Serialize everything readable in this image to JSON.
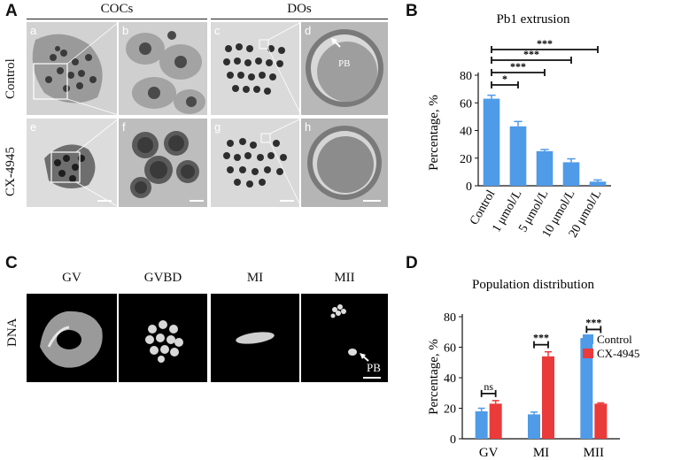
{
  "panel_a": {
    "letter": "A",
    "headers": [
      "COCs",
      "DOs"
    ],
    "row_labels": [
      "Control",
      "CX-4945"
    ],
    "sub_letters": [
      "a",
      "b",
      "c",
      "d",
      "e",
      "f",
      "g",
      "h"
    ],
    "pb_label": "PB"
  },
  "panel_b": {
    "letter": "B"
  },
  "panel_c": {
    "letter": "C",
    "stage_labels": [
      "GV",
      "GVBD",
      "MI",
      "MII"
    ],
    "row_label": "DNA",
    "pb_label": "PB"
  },
  "panel_d": {
    "letter": "D"
  },
  "colors": {
    "control": "#4f9be8",
    "cx4945": "#ea3a3a",
    "dark": "#111111"
  },
  "chart_data": [
    {
      "type": "bar",
      "title": "Pb1 extrusion",
      "ylabel": "Percentage, %",
      "xlabel": "",
      "categories": [
        "Control",
        "1 μmol/L",
        "5 μmol/L",
        "10 μmol/L",
        "20 μmol/L"
      ],
      "values": [
        63,
        43,
        25,
        17,
        3
      ],
      "errors": [
        2.5,
        3.5,
        1.2,
        2.5,
        1.2
      ],
      "ylim": [
        0,
        80
      ],
      "yticks": [
        0,
        20,
        40,
        60,
        80
      ],
      "significance": [
        {
          "from": 0,
          "to": 1,
          "label": "*"
        },
        {
          "from": 0,
          "to": 2,
          "label": "***"
        },
        {
          "from": 0,
          "to": 3,
          "label": "***"
        },
        {
          "from": 0,
          "to": 4,
          "label": "***"
        }
      ]
    },
    {
      "type": "bar",
      "title": "Population distribution",
      "ylabel": "Percentage, %",
      "xlabel": "",
      "categories": [
        "GV",
        "MI",
        "MII"
      ],
      "series": [
        {
          "name": "Control",
          "values": [
            18,
            16,
            66
          ],
          "errors": [
            2,
            1.5,
            1
          ]
        },
        {
          "name": "CX-4945",
          "values": [
            23,
            54,
            23
          ],
          "errors": [
            2,
            3,
            0.5
          ]
        }
      ],
      "ylim": [
        0,
        80
      ],
      "yticks": [
        0,
        20,
        40,
        60,
        80
      ],
      "significance": [
        "ns",
        "***",
        "***"
      ],
      "legend": "top-right"
    }
  ]
}
